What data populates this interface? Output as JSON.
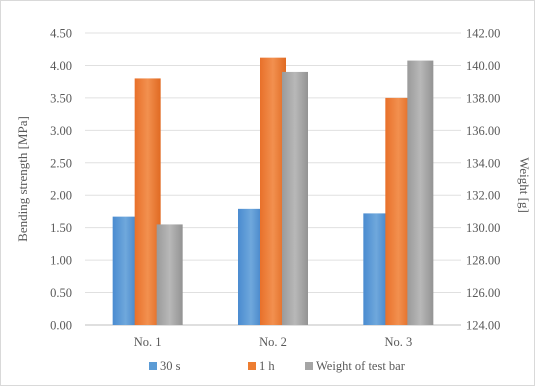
{
  "chart_data": {
    "type": "bar",
    "categories": [
      "No. 1",
      "No. 2",
      "No. 3"
    ],
    "series": [
      {
        "name": "30 s",
        "axis": "left",
        "values": [
          1.67,
          1.79,
          1.72
        ]
      },
      {
        "name": "1 h",
        "axis": "left",
        "values": [
          3.8,
          4.12,
          3.5
        ]
      },
      {
        "name": "Weight of test bar",
        "axis": "right",
        "values": [
          130.2,
          139.6,
          140.3
        ]
      }
    ],
    "ylabel": "Bending strength [MPa]",
    "y2label": "Weight [g]",
    "ylim": [
      0,
      4.5
    ],
    "y2lim": [
      124,
      142
    ],
    "yticks": [
      "0.00",
      "0.50",
      "1.00",
      "1.50",
      "2.00",
      "2.50",
      "3.00",
      "3.50",
      "4.00",
      "4.50"
    ],
    "y2ticks": [
      "124.00",
      "126.00",
      "128.00",
      "130.00",
      "132.00",
      "134.00",
      "136.00",
      "138.00",
      "140.00",
      "142.00"
    ],
    "legend_position": "bottom",
    "grid": true,
    "colors": [
      "#5b9bd5",
      "#ed7d31",
      "#a5a5a5"
    ]
  }
}
